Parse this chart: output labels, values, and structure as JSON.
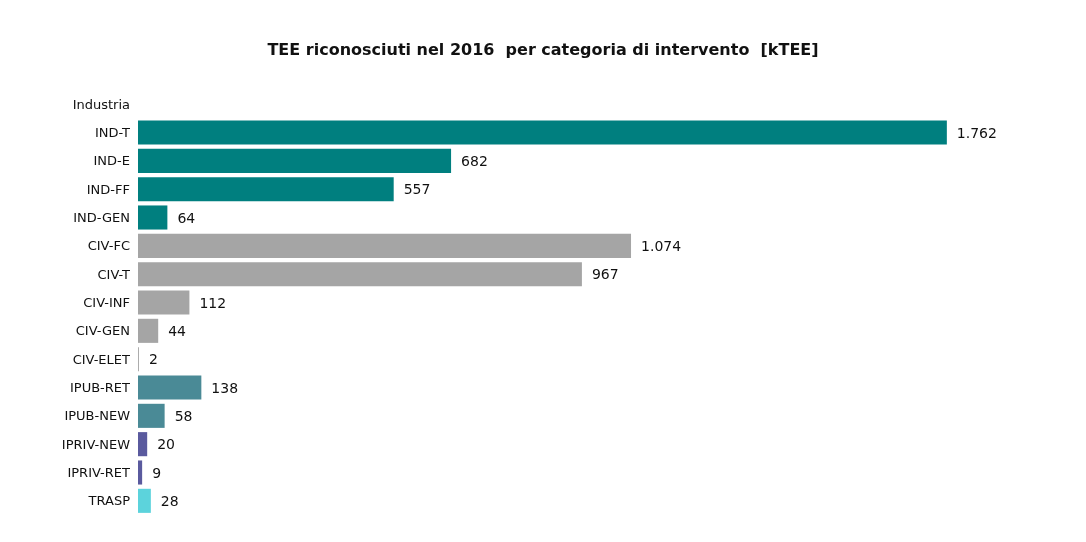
{
  "chart_data": {
    "type": "bar",
    "orientation": "horizontal",
    "title": "TEE riconosciuti nel 2016  per categoria di intervento  [kTEE]",
    "categories": [
      "Industria",
      "IND-T",
      "IND-E",
      "IND-FF",
      "IND-GEN",
      "CIV-FC",
      "CIV-T",
      "CIV-INF",
      "CIV-GEN",
      "CIV-ELET",
      "IPUB-RET",
      "IPUB-NEW",
      "IPRIV-NEW",
      "IPRIV-RET",
      "TRASP"
    ],
    "values": [
      null,
      1762,
      682,
      557,
      64,
      1074,
      967,
      112,
      44,
      2,
      138,
      58,
      20,
      9,
      28
    ],
    "value_labels": [
      null,
      "1.762",
      "682",
      "557",
      "64",
      "1.074",
      "967",
      "112",
      "44",
      "2",
      "138",
      "58",
      "20",
      "9",
      "28"
    ],
    "colors": [
      "#007f7f",
      "#007f7f",
      "#007f7f",
      "#007f7f",
      "#007f7f",
      "#a5a5a5",
      "#a5a5a5",
      "#a5a5a5",
      "#a5a5a5",
      "#a5a5a5",
      "#4a8a96",
      "#4a8a96",
      "#5a5a9e",
      "#5a5a9e",
      "#5cd3dc"
    ]
  }
}
